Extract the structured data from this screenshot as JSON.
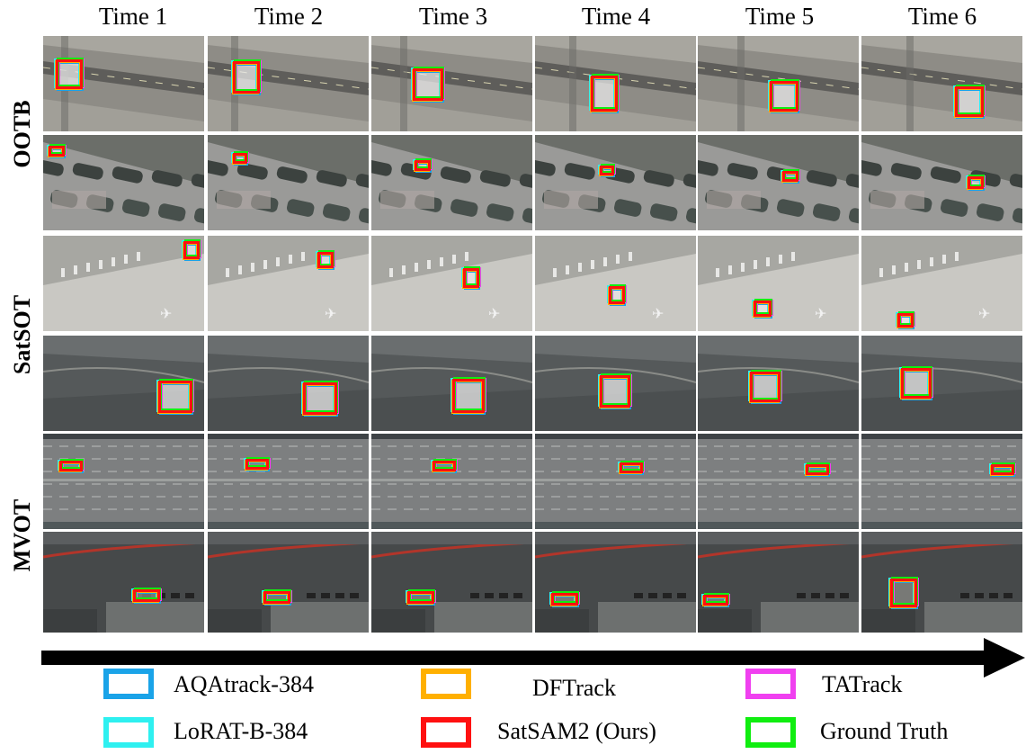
{
  "columns": [
    "Time 1",
    "Time 2",
    "Time 3",
    "Time 4",
    "Time 5",
    "Time 6"
  ],
  "row_groups": [
    "OOTB",
    "SatSOT",
    "MVOT"
  ],
  "colors": {
    "aqatrack": "#1aa3e8",
    "lorat": "#2ef0f0",
    "dftrack": "#ffb000",
    "satsam2": "#ff1010",
    "tatrack": "#f040f0",
    "ground_truth": "#10ee10"
  },
  "legend": [
    {
      "label": "AQAtrack-384",
      "color": "#1aa3e8"
    },
    {
      "label": "DFTrack",
      "color": "#ffb000"
    },
    {
      "label": "TATrack",
      "color": "#f040f0"
    },
    {
      "label": "LoRAT-B-384",
      "color": "#2ef0f0"
    },
    {
      "label": "SatSAM2 (Ours)",
      "color": "#ff1010"
    },
    {
      "label": "Ground Truth",
      "color": "#10ee10"
    }
  ],
  "scene_kinds": [
    "airport-taxiway",
    "airport-apron",
    "concrete-apron",
    "runway-plane",
    "highway",
    "parking-lot"
  ]
}
